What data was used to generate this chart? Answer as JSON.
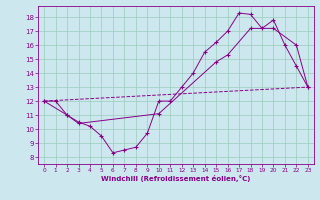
{
  "bg_color": "#cce8ee",
  "line_color": "#880088",
  "grid_color": "#99ccbb",
  "xlabel": "Windchill (Refroidissement éolien,°C)",
  "xlim": [
    -0.5,
    23.5
  ],
  "ylim": [
    7.5,
    18.8
  ],
  "yticks": [
    8,
    9,
    10,
    11,
    12,
    13,
    14,
    15,
    16,
    17,
    18
  ],
  "xticks": [
    0,
    1,
    2,
    3,
    4,
    5,
    6,
    7,
    8,
    9,
    10,
    11,
    12,
    13,
    14,
    15,
    16,
    17,
    18,
    19,
    20,
    21,
    22,
    23
  ],
  "line1_x": [
    0,
    1,
    2,
    3,
    4,
    5,
    6,
    7,
    8,
    9,
    10,
    11,
    12,
    13,
    14,
    15,
    16,
    17,
    18,
    19,
    20,
    21,
    22,
    23
  ],
  "line1_y": [
    12,
    12,
    11,
    10.5,
    10.2,
    9.5,
    8.3,
    8.5,
    8.7,
    9.7,
    12,
    12,
    13,
    14,
    15.5,
    16.2,
    17,
    18.3,
    18.2,
    17.2,
    17.8,
    16,
    14.5,
    13
  ],
  "line2_x": [
    0,
    2,
    3,
    10,
    15,
    16,
    18,
    20,
    22,
    23
  ],
  "line2_y": [
    12,
    11,
    10.4,
    11.1,
    14.8,
    15.3,
    17.2,
    17.2,
    16.0,
    13
  ],
  "line3_x": [
    0,
    23
  ],
  "line3_y": [
    12,
    13
  ]
}
